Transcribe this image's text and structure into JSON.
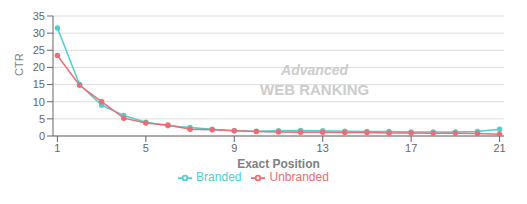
{
  "chart_data": {
    "type": "line",
    "x": [
      1,
      2,
      3,
      4,
      5,
      6,
      7,
      8,
      9,
      10,
      11,
      12,
      13,
      14,
      15,
      16,
      17,
      18,
      19,
      20,
      21
    ],
    "series": [
      {
        "name": "Branded",
        "color": "#4dcfce",
        "marker": "circle",
        "values": [
          31.5,
          15.0,
          9.0,
          6.0,
          4.0,
          3.0,
          2.5,
          2.0,
          1.5,
          1.4,
          1.5,
          1.6,
          1.5,
          1.4,
          1.3,
          1.3,
          1.2,
          1.2,
          1.2,
          1.3,
          2.0
        ]
      },
      {
        "name": "Unbranded",
        "color": "#f06b72",
        "marker": "circle",
        "values": [
          23.5,
          14.8,
          10.0,
          5.2,
          3.8,
          3.2,
          2.0,
          1.8,
          1.5,
          1.3,
          1.2,
          1.1,
          1.1,
          1.0,
          1.0,
          0.9,
          0.9,
          0.8,
          0.8,
          0.7,
          0.5
        ]
      }
    ],
    "xlabel": "Exact Position",
    "ylabel": "CTR",
    "xlim": [
      0.8,
      21.2
    ],
    "xticks": [
      1,
      5,
      9,
      13,
      17,
      21
    ],
    "ylim": [
      0,
      35
    ],
    "yticks": [
      0,
      5,
      10,
      15,
      20,
      25,
      30,
      35
    ],
    "grid": "y",
    "legend": "bottom",
    "annotations": [
      "Advanced",
      "WEB RANKING"
    ]
  }
}
